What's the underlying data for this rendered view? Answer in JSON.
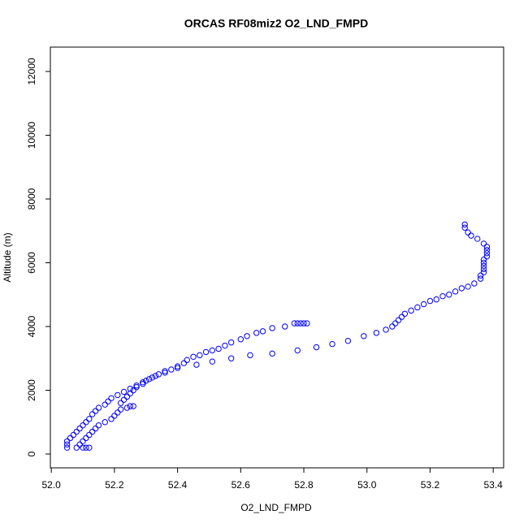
{
  "chart_data": {
    "type": "scatter",
    "title": "ORCAS RF08miz2 O2_LND_FMPD",
    "x_label": "O2_LND_FMPD",
    "y_label": "Altitude (m)",
    "color": "#0000ff",
    "xlim": [
      51.997,
      53.433
    ],
    "ylim": [
      -433,
      12764
    ],
    "xticks": [
      {
        "value": 52.0,
        "label": "52.0"
      },
      52.2,
      52.4,
      52.6,
      52.8,
      {
        "value": 53.0,
        "label": "53.0"
      },
      53.2,
      53.4
    ],
    "yticks": [
      0,
      2000,
      4000,
      6000,
      8000,
      10000,
      12000
    ],
    "x": [
      53.31,
      53.31,
      53.32,
      53.33,
      53.35,
      53.37,
      53.38,
      53.38,
      53.38,
      53.38,
      53.37,
      53.37,
      53.37,
      53.37,
      53.37,
      53.36,
      53.36,
      53.34,
      53.32,
      53.3,
      53.28,
      53.26,
      53.24,
      53.22,
      53.2,
      53.18,
      53.16,
      53.14,
      53.12,
      53.11,
      53.1,
      53.09,
      53.08,
      53.06,
      53.03,
      52.99,
      52.94,
      52.89,
      52.84,
      52.78,
      52.7,
      52.63,
      52.57,
      52.51,
      52.46,
      52.4,
      52.36,
      52.34,
      52.32,
      52.3,
      52.29,
      52.27,
      52.26,
      52.25,
      52.24,
      52.23,
      52.22,
      52.26,
      52.25,
      52.24,
      52.22,
      52.21,
      52.2,
      52.19,
      52.17,
      52.15,
      52.14,
      52.13,
      52.12,
      52.11,
      52.1,
      52.09,
      52.1,
      52.12,
      52.11,
      52.08,
      52.77,
      52.78,
      52.79,
      52.8,
      52.81,
      52.74,
      52.7,
      52.67,
      52.65,
      52.62,
      52.6,
      52.57,
      52.55,
      52.53,
      52.51,
      52.49,
      52.47,
      52.45,
      52.43,
      52.42,
      52.4,
      52.38,
      52.36,
      52.33,
      52.31,
      52.29,
      52.27,
      52.25,
      52.23,
      52.21,
      52.19,
      52.18,
      52.17,
      52.15,
      52.14,
      52.13,
      52.12,
      52.11,
      52.1,
      52.09,
      52.08,
      52.07,
      52.06,
      52.05,
      52.05,
      52.05
    ],
    "values": [
      7200,
      7100,
      6950,
      6850,
      6750,
      6600,
      6500,
      6400,
      6300,
      6200,
      6100,
      6000,
      5900,
      5800,
      5700,
      5600,
      5500,
      5350,
      5250,
      5200,
      5100,
      5000,
      4950,
      4850,
      4800,
      4700,
      4600,
      4500,
      4400,
      4300,
      4200,
      4100,
      4000,
      3900,
      3800,
      3700,
      3550,
      3450,
      3350,
      3250,
      3150,
      3100,
      3000,
      2900,
      2800,
      2700,
      2600,
      2500,
      2400,
      2300,
      2200,
      2100,
      2000,
      1900,
      1800,
      1700,
      1600,
      1500,
      1500,
      1450,
      1400,
      1300,
      1200,
      1100,
      1000,
      900,
      800,
      700,
      600,
      500,
      400,
      300,
      200,
      200,
      200,
      200,
      4100,
      4100,
      4100,
      4100,
      4100,
      4000,
      3950,
      3850,
      3800,
      3700,
      3600,
      3500,
      3400,
      3300,
      3250,
      3200,
      3100,
      3050,
      2950,
      2850,
      2750,
      2650,
      2550,
      2450,
      2350,
      2250,
      2150,
      2050,
      1950,
      1850,
      1750,
      1650,
      1550,
      1450,
      1350,
      1250,
      1100,
      1000,
      900,
      800,
      700,
      600,
      500,
      400,
      300,
      200
    ]
  }
}
